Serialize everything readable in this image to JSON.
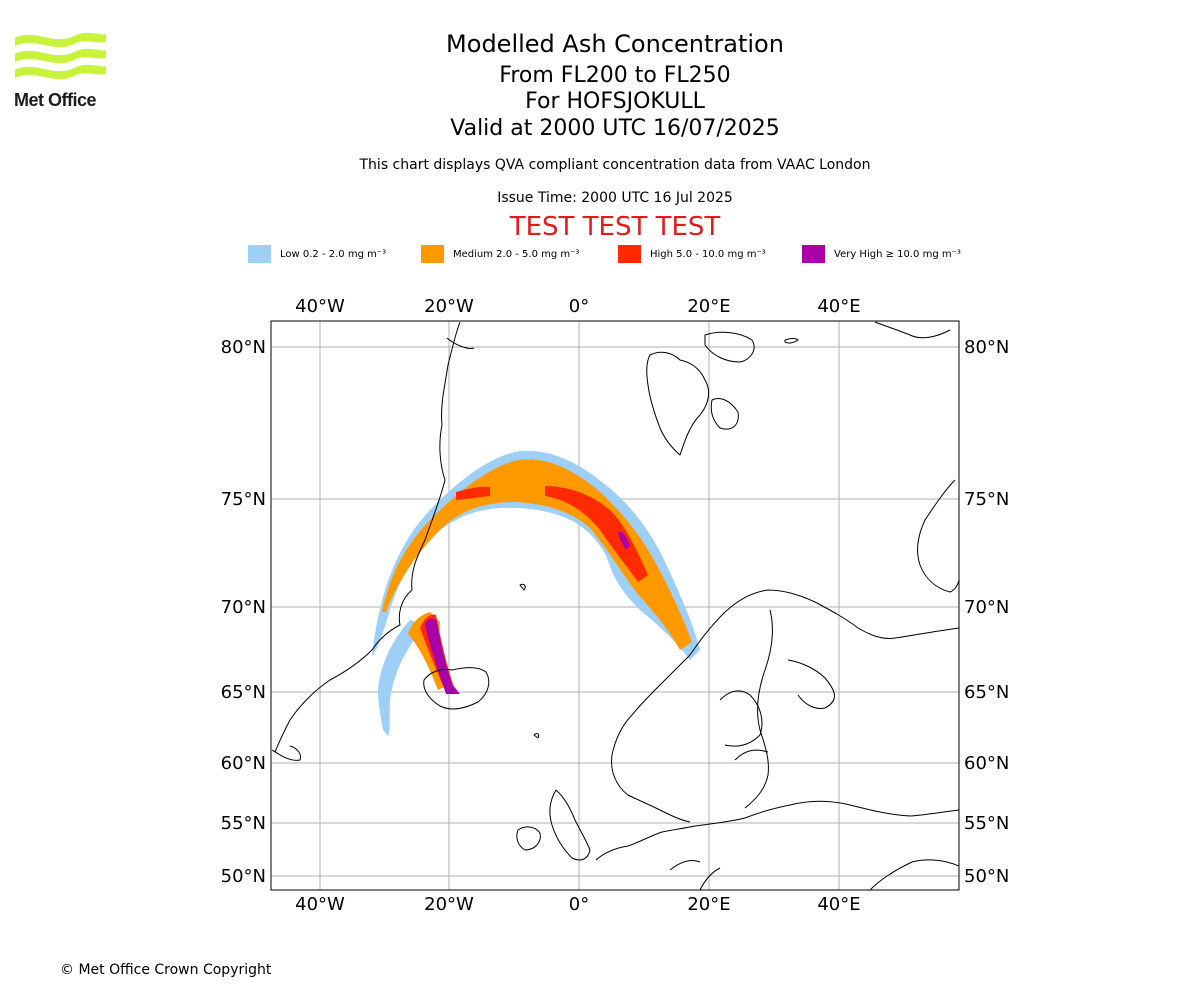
{
  "logo": {
    "text": "Met Office",
    "color": "#c9f23c"
  },
  "title": {
    "line1": "Modelled Ash Concentration",
    "line2": "From FL200 to FL250",
    "line3": "For HOFSJOKULL",
    "line4": "Valid at 2000 UTC 16/07/2025"
  },
  "subtitle": "This chart displays QVA compliant concentration data from VAAC London",
  "issue_time": "Issue Time: 2000 UTC 16 Jul 2025",
  "test_banner": "TEST TEST TEST",
  "legend": [
    {
      "label": "Low 0.2 - 2.0 mg m⁻³",
      "color": "#9dcff7"
    },
    {
      "label": "Medium 2.0 - 5.0 mg m⁻³",
      "color": "#ff9900"
    },
    {
      "label": "High 5.0 - 10.0 mg m⁻³",
      "color": "#ff2a00"
    },
    {
      "label": "Very High  ≥  10.0 mg m⁻³",
      "color": "#aa00aa"
    }
  ],
  "map": {
    "lon_ticks": [
      "40°W",
      "20°W",
      "0°",
      "20°E",
      "40°E"
    ],
    "lat_ticks": [
      "80°N",
      "75°N",
      "70°N",
      "65°N",
      "60°N",
      "55°N",
      "50°N"
    ],
    "gridlines": true
  },
  "copyright": "© Met Office Crown Copyright"
}
